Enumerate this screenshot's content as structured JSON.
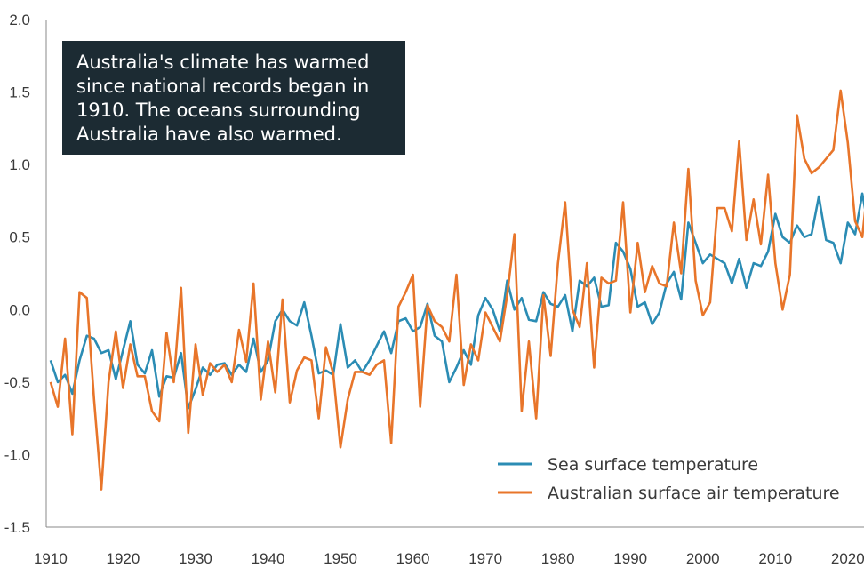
{
  "annotation": "Australia's climate has warmed since national records began in 1910. The oceans surrounding Australia have also warmed.",
  "chart_data": {
    "type": "line",
    "title": "",
    "xlabel": "",
    "ylabel": "",
    "xlim": [
      1910,
      2024
    ],
    "ylim": [
      -1.5,
      2.0
    ],
    "x_ticks": [
      1910,
      1920,
      1930,
      1940,
      1950,
      1960,
      1970,
      1980,
      1990,
      2000,
      2010,
      2020
    ],
    "y_ticks": [
      {
        "value": 2.0,
        "label": "2.0"
      },
      {
        "value": 1.5,
        "label": "1.5"
      },
      {
        "value": 1.0,
        "label": "1.0"
      },
      {
        "value": 0.5,
        "label": "0.5"
      },
      {
        "value": 0.0,
        "label": "0.0"
      },
      {
        "value": -0.5,
        "label": "-0.5"
      },
      {
        "value": -1.0,
        "label": "-1.0"
      },
      {
        "value": -1.5,
        "label": "-1.5"
      }
    ],
    "grid": false,
    "legend_position": "bottom-right",
    "series": [
      {
        "name": "Sea surface temperature",
        "color": "#2b8cb4",
        "x_start": 1910,
        "values": [
          -0.35,
          -0.5,
          -0.45,
          -0.58,
          -0.35,
          -0.18,
          -0.2,
          -0.3,
          -0.28,
          -0.48,
          -0.28,
          -0.08,
          -0.38,
          -0.44,
          -0.28,
          -0.6,
          -0.46,
          -0.47,
          -0.3,
          -0.68,
          -0.55,
          -0.4,
          -0.45,
          -0.38,
          -0.37,
          -0.45,
          -0.38,
          -0.43,
          -0.2,
          -0.43,
          -0.35,
          -0.08,
          0.0,
          -0.08,
          -0.11,
          0.05,
          -0.18,
          -0.44,
          -0.42,
          -0.45,
          -0.1,
          -0.4,
          -0.35,
          -0.43,
          -0.35,
          -0.25,
          -0.15,
          -0.3,
          -0.08,
          -0.06,
          -0.15,
          -0.12,
          0.04,
          -0.18,
          -0.22,
          -0.5,
          -0.4,
          -0.28,
          -0.38,
          -0.04,
          0.08,
          0.0,
          -0.15,
          0.2,
          0.0,
          0.08,
          -0.07,
          -0.08,
          0.12,
          0.04,
          0.02,
          0.1,
          -0.15,
          0.2,
          0.16,
          0.22,
          0.02,
          0.03,
          0.46,
          0.4,
          0.28,
          0.02,
          0.05,
          -0.1,
          -0.02,
          0.18,
          0.26,
          0.07,
          0.6,
          0.46,
          0.32,
          0.38,
          0.35,
          0.32,
          0.18,
          0.35,
          0.15,
          0.32,
          0.3,
          0.4,
          0.66,
          0.5,
          0.46,
          0.58,
          0.5,
          0.52,
          0.78,
          0.48,
          0.46,
          0.32,
          0.6,
          0.52,
          0.8,
          0.52
        ]
      },
      {
        "name": "Australian surface air temperature",
        "color": "#e8752a",
        "x_start": 1910,
        "values": [
          -0.5,
          -0.67,
          -0.2,
          -0.86,
          0.12,
          0.08,
          -0.62,
          -1.24,
          -0.5,
          -0.15,
          -0.54,
          -0.24,
          -0.46,
          -0.46,
          -0.7,
          -0.77,
          -0.16,
          -0.5,
          0.15,
          -0.85,
          -0.24,
          -0.59,
          -0.37,
          -0.43,
          -0.38,
          -0.5,
          -0.14,
          -0.36,
          0.18,
          -0.62,
          -0.22,
          -0.57,
          0.07,
          -0.64,
          -0.42,
          -0.33,
          -0.35,
          -0.75,
          -0.26,
          -0.44,
          -0.95,
          -0.62,
          -0.43,
          -0.43,
          -0.45,
          -0.38,
          -0.35,
          -0.92,
          0.02,
          0.12,
          0.24,
          -0.67,
          0.03,
          -0.08,
          -0.12,
          -0.22,
          0.24,
          -0.52,
          -0.24,
          -0.35,
          -0.02,
          -0.12,
          -0.22,
          0.1,
          0.52,
          -0.7,
          -0.22,
          -0.75,
          0.1,
          -0.32,
          0.32,
          0.74,
          0.0,
          -0.12,
          0.32,
          -0.4,
          0.22,
          0.18,
          0.2,
          0.74,
          -0.02,
          0.46,
          0.12,
          0.3,
          0.18,
          0.16,
          0.6,
          0.25,
          0.97,
          0.2,
          -0.04,
          0.05,
          0.7,
          0.7,
          0.54,
          1.16,
          0.48,
          0.76,
          0.45,
          0.93,
          0.32,
          0.0,
          0.24,
          1.34,
          1.04,
          0.94,
          0.98,
          1.04,
          1.1,
          1.51,
          1.15,
          0.61,
          0.5,
          0.98
        ]
      }
    ]
  }
}
